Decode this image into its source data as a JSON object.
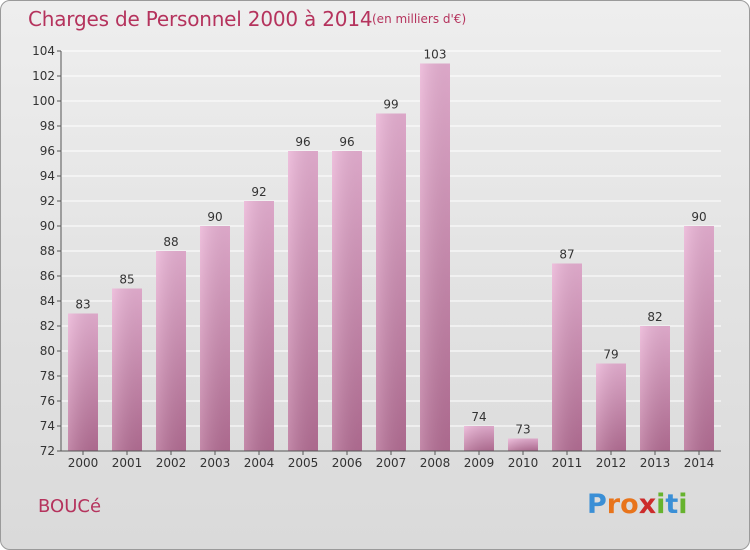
{
  "header": {
    "title": "Charges de Personnel 2000 à 2014",
    "subtitle": "(en milliers d'€)"
  },
  "footer": {
    "commune": "BOUCé",
    "logo_letters": [
      "P",
      "r",
      "o",
      "x",
      "i",
      "t",
      "i"
    ],
    "logo_colors": [
      "#3a8fd6",
      "#e8741b",
      "#e8741b",
      "#cc2b2b",
      "#66b32e",
      "#3a8fd6",
      "#66b32e"
    ]
  },
  "colors": {
    "title": "#b5335d",
    "bar_top": "#eab2d5",
    "bar_bottom": "#b66f96",
    "axis": "#555555",
    "grid": "#ffffff"
  },
  "chart_data": {
    "type": "bar",
    "categories": [
      "2000",
      "2001",
      "2002",
      "2003",
      "2004",
      "2005",
      "2006",
      "2007",
      "2008",
      "2009",
      "2010",
      "2011",
      "2012",
      "2013",
      "2014"
    ],
    "values": [
      83,
      85,
      88,
      90,
      92,
      96,
      96,
      99,
      103,
      74,
      73,
      87,
      79,
      82,
      90
    ],
    "ylim": [
      72,
      104
    ],
    "yticks": [
      72,
      74,
      76,
      78,
      80,
      82,
      84,
      86,
      88,
      90,
      92,
      94,
      96,
      98,
      100,
      102,
      104
    ],
    "grid": true,
    "data_labels": true
  }
}
